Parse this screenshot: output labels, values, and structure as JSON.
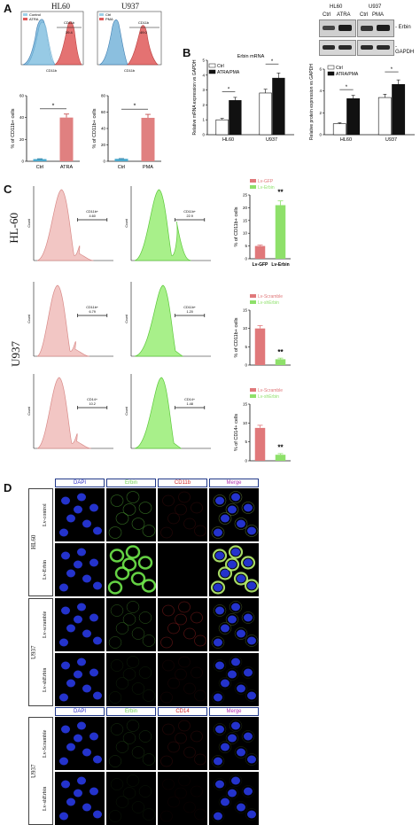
{
  "panels": {
    "A": "A",
    "B": "B",
    "C": "C",
    "D": "D"
  },
  "panelA": {
    "hist_titles": [
      "HL60",
      "U937"
    ],
    "hist_legend_hl60": [
      "Control",
      "ATRA"
    ],
    "hist_legend_u937": [
      "Ctrl",
      "PMA"
    ],
    "gate_label": "CD11b",
    "gate_value_hl60": "39.4",
    "gate_value_u937": "49.0",
    "xaxis_label": "CD11b",
    "bar_ylabel": "% of CD11b+ cells",
    "sig": "*"
  },
  "panelB": {
    "mrna_title": "Erbin mRNA",
    "legend": [
      "Ctrl",
      "ATRA/PMA"
    ],
    "mrna_ylabel": "Relative mRNA expression vs GAPDH",
    "protein_ylabel": "Relative protein expression vs GAPDH",
    "groups": [
      "HL60",
      "U937"
    ],
    "blot_cell_lines": [
      "HL60",
      "U937"
    ],
    "blot_lanes": [
      "Ctrl",
      "ATRA",
      "Ctrl",
      "PMA"
    ],
    "blot_rows": [
      "Erbin",
      "GAPDH"
    ],
    "sig": "*"
  },
  "panelC": {
    "row_labels": [
      "HL-60",
      "U937"
    ],
    "flow_ylabel": "Count",
    "gates": [
      {
        "label": "CD11b+",
        "value": "4.60"
      },
      {
        "label": "CD11b+",
        "value": "22.9"
      },
      {
        "label": "CD11b+",
        "value": "6.79"
      },
      {
        "label": "CD11b+",
        "value": "1.20"
      },
      {
        "label": "CD14+",
        "value": "10.2"
      },
      {
        "label": "CD14+",
        "value": "1.48"
      }
    ],
    "legend1": [
      "Lv-GFP",
      "Lv-Erbin"
    ],
    "legend2": [
      "Lv-Scramble",
      "Lv-shErbin"
    ],
    "ylabel1": "% of CD11b+ cells",
    "ylabel2": "% of CD11b+ cells",
    "ylabel3": "% of CD14+ cells",
    "sig": "**",
    "colors": {
      "red": "#e0787a",
      "green": "#8ee06a"
    }
  },
  "panelD": {
    "headers1": [
      "DAPI",
      "Erbin",
      "CD11b",
      "Merge"
    ],
    "headers2": [
      "DAPI",
      "Erbin",
      "CD14",
      "Merge"
    ],
    "group_labels": [
      "HL60",
      "U937",
      "U937"
    ],
    "rows1": [
      "Lv-control",
      "Lv-Erbin",
      "Lv-scramble",
      "Lv-shErbin"
    ],
    "rows2": [
      "Lv-Scramble",
      "Lv-shErbin"
    ]
  },
  "chart_data": [
    {
      "type": "bar",
      "categories": [
        "Ctrl",
        "ATRA"
      ],
      "values": [
        2,
        40
      ],
      "ylabel": "% of CD11b+ cells",
      "ylim": [
        0,
        60
      ]
    },
    {
      "type": "bar",
      "categories": [
        "Ctrl",
        "PMA"
      ],
      "values": [
        3,
        53
      ],
      "ylabel": "% of CD11b+ cells",
      "ylim": [
        0,
        80
      ]
    },
    {
      "type": "bar",
      "categories": [
        "HL60",
        "U937"
      ],
      "series": [
        {
          "name": "Ctrl",
          "values": [
            1.0,
            2.8
          ]
        },
        {
          "name": "ATRA/PMA",
          "values": [
            2.3,
            3.8
          ]
        }
      ],
      "title": "Erbin mRNA",
      "ylabel": "Relative mRNA expression vs GAPDH",
      "ylim": [
        0,
        5
      ]
    },
    {
      "type": "bar",
      "categories": [
        "HL60",
        "U937"
      ],
      "series": [
        {
          "name": "Ctrl",
          "values": [
            1.0,
            3.4
          ]
        },
        {
          "name": "ATRA/PMA",
          "values": [
            3.3,
            4.6
          ]
        }
      ],
      "ylabel": "Relative protein expression vs GAPDH",
      "ylim": [
        0,
        6
      ]
    },
    {
      "type": "bar",
      "categories": [
        "Lv-GFP",
        "Lv-Erbin"
      ],
      "values": [
        5,
        21
      ],
      "ylabel": "% of CD11b+ cells",
      "ylim": [
        0,
        25
      ]
    },
    {
      "type": "bar",
      "categories": [
        "Lv-Scramble",
        "Lv-shErbin"
      ],
      "values": [
        10,
        1.6
      ],
      "ylabel": "% of CD11b+ cells",
      "ylim": [
        0,
        15
      ]
    },
    {
      "type": "bar",
      "categories": [
        "Lv-Scramble",
        "Lv-shErbin"
      ],
      "values": [
        8.7,
        1.6
      ],
      "ylabel": "% of CD14+ cells",
      "ylim": [
        0,
        15
      ]
    }
  ]
}
